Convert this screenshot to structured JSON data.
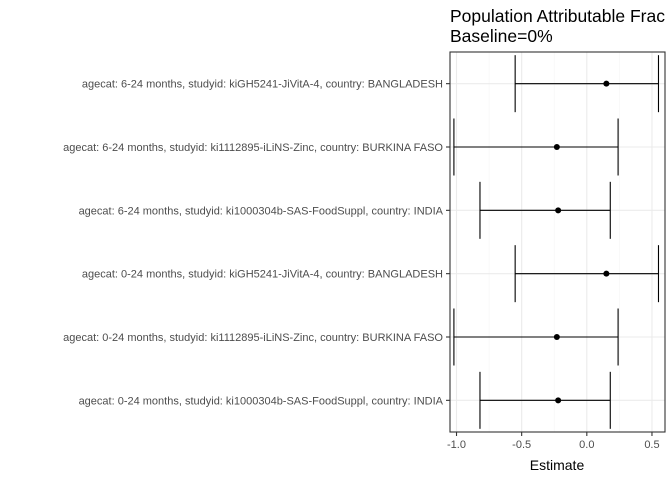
{
  "chart_data": {
    "type": "scatter",
    "subtype": "forest-plot-with-error-bars",
    "title_lines": [
      "Population Attributable Frac",
      "Baseline=0%"
    ],
    "xlabel": "Estimate",
    "ylabel": "",
    "xlim": [
      -1.05,
      0.6
    ],
    "xticks": [
      -1.0,
      -0.5,
      0.0,
      0.5
    ],
    "xtick_labels": [
      "-1.0",
      "-0.5",
      "0.0",
      "0.5"
    ],
    "grid": true,
    "panel_border": true,
    "categories": [
      "agecat: 6-24 months, studyid: kiGH5241-JiVitA-4, country: BANGLADESH",
      "agecat: 6-24 months, studyid: ki1112895-iLiNS-Zinc, country: BURKINA FASO",
      "agecat: 6-24 months, studyid: ki1000304b-SAS-FoodSuppl, country: INDIA",
      "agecat: 0-24 months, studyid: kiGH5241-JiVitA-4, country: BANGLADESH",
      "agecat: 0-24 months, studyid: ki1112895-iLiNS-Zinc, country: BURKINA FASO",
      "agecat: 0-24 months, studyid: ki1000304b-SAS-FoodSuppl, country: INDIA"
    ],
    "estimates": [
      0.15,
      -0.23,
      -0.22,
      0.15,
      -0.23,
      -0.22
    ],
    "ci_lower": [
      -0.55,
      -1.02,
      -0.82,
      -0.55,
      -1.02,
      -0.82
    ],
    "ci_upper": [
      0.55,
      0.24,
      0.18,
      0.55,
      0.24,
      0.18
    ],
    "colors": {
      "point": "#000000",
      "errorbar": "#000000",
      "grid_major": "#ebebeb",
      "grid_minor": "#f5f5f5",
      "border": "#333333",
      "tick_label": "#4d4d4d"
    }
  }
}
